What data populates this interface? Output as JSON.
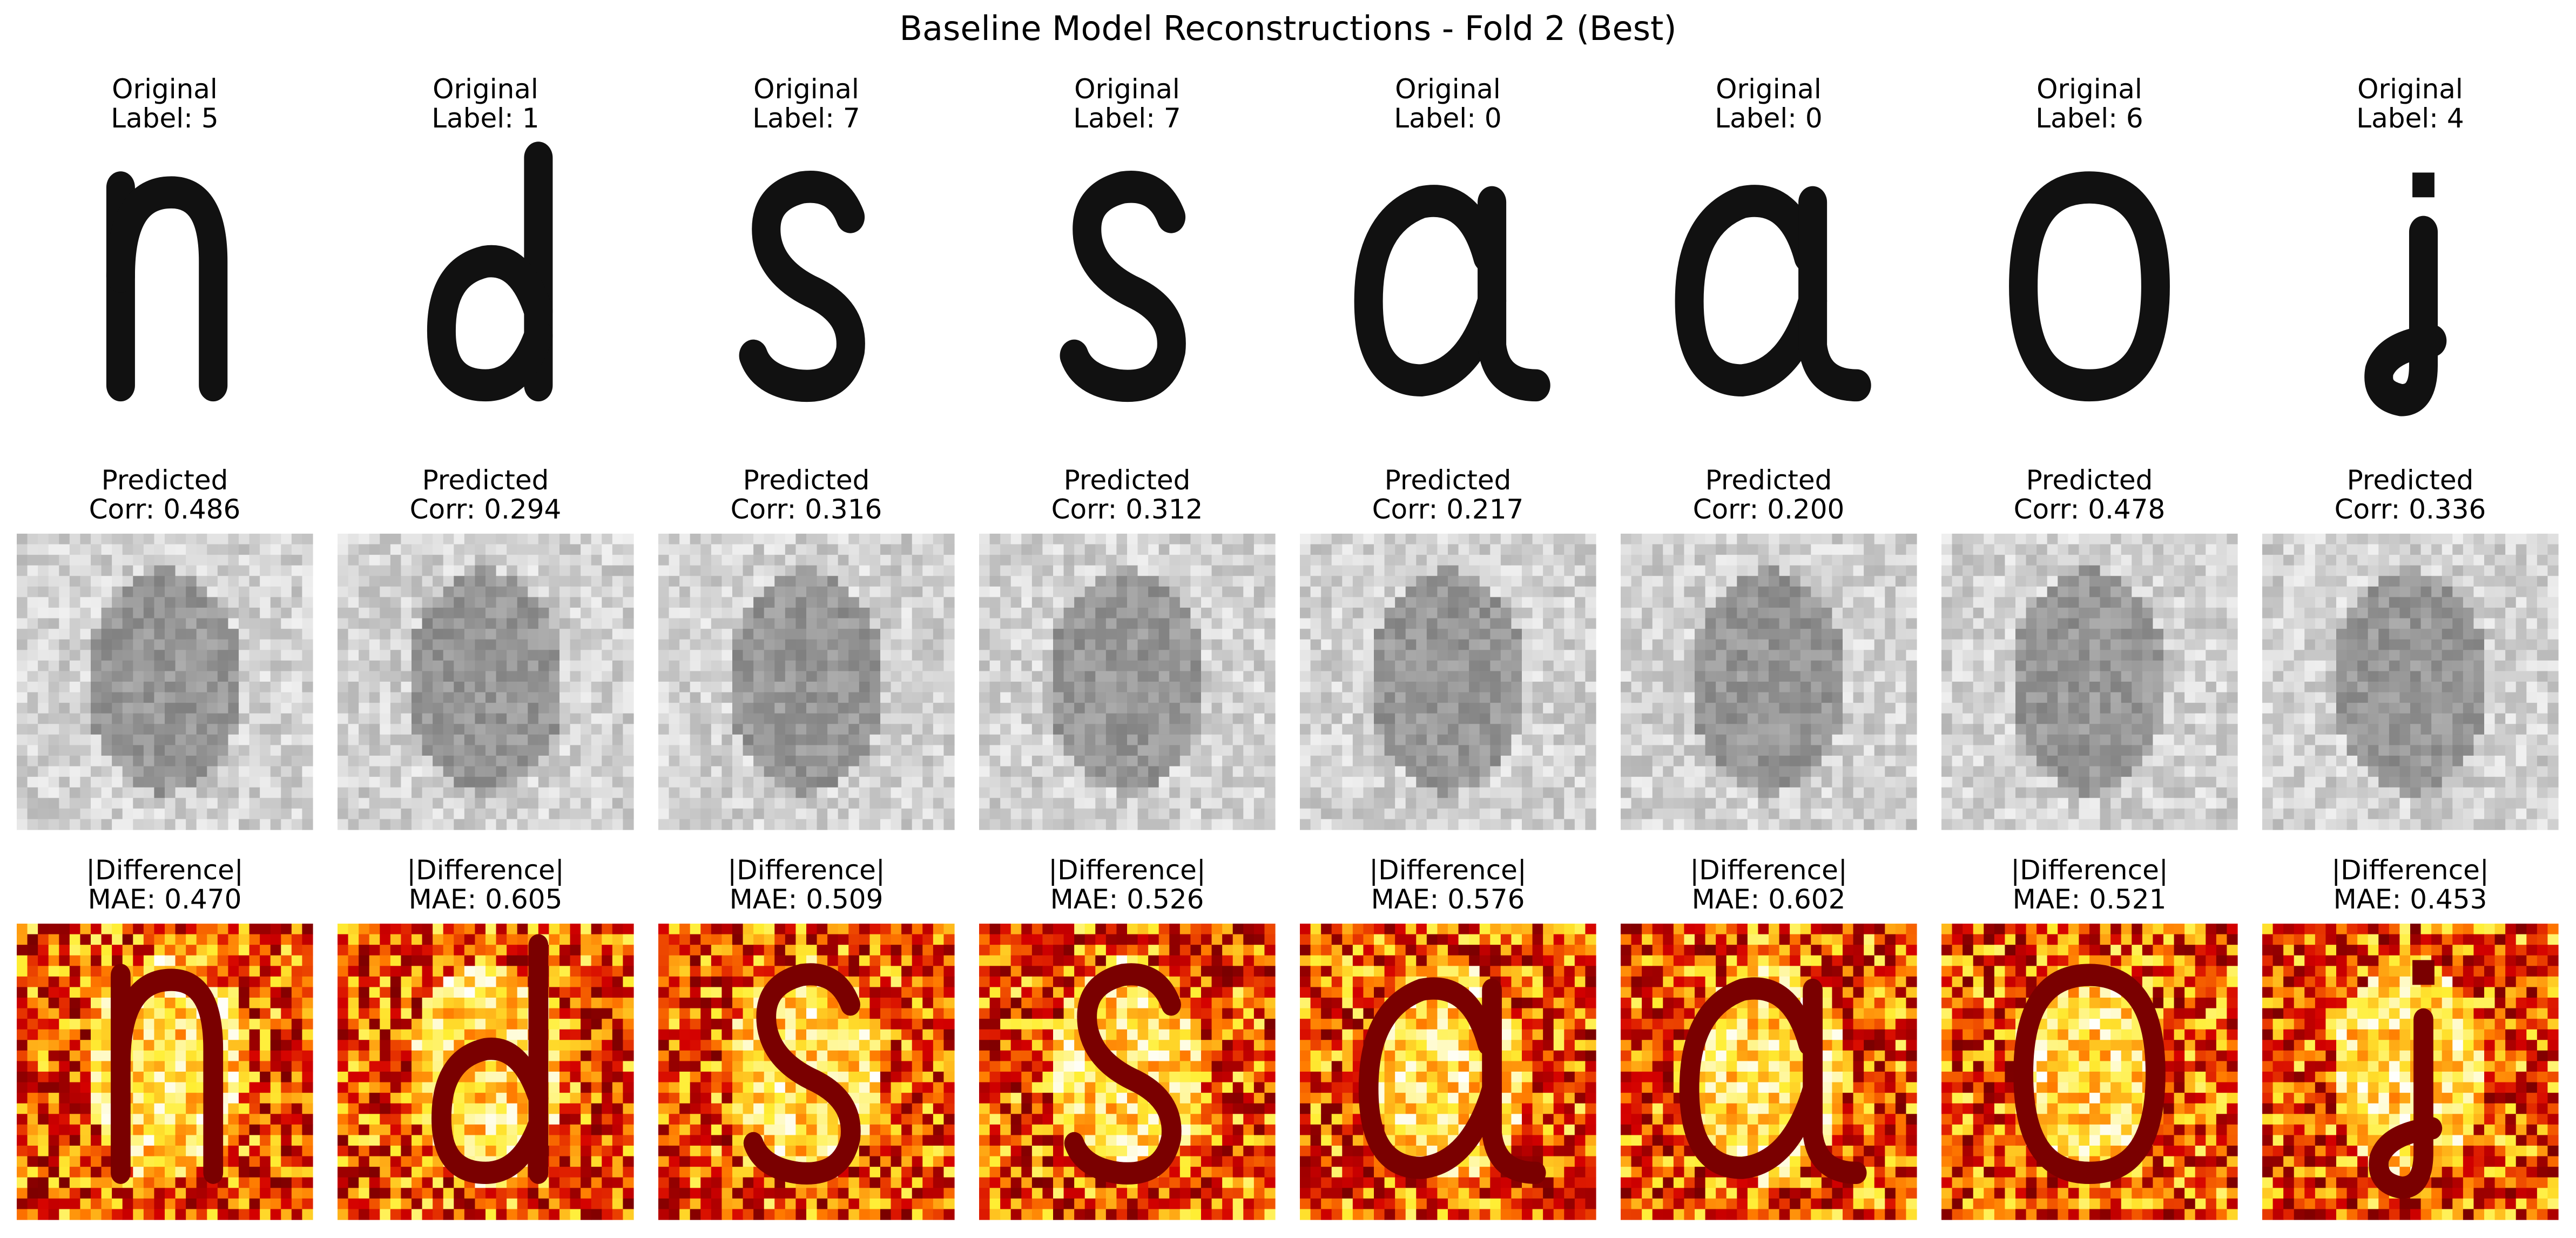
{
  "figure": {
    "title": "Baseline Model Reconstructions - Fold 2 (Best)",
    "rows": [
      {
        "kind": "original",
        "heading": "Original",
        "values": [
          "Label: 5",
          "Label: 1",
          "Label: 7",
          "Label: 7",
          "Label: 0",
          "Label: 0",
          "Label: 6",
          "Label: 4"
        ]
      },
      {
        "kind": "predicted",
        "heading": "Predicted",
        "values": [
          "Corr: 0.486",
          "Corr: 0.294",
          "Corr: 0.316",
          "Corr: 0.312",
          "Corr: 0.217",
          "Corr: 0.200",
          "Corr: 0.478",
          "Corr: 0.336"
        ]
      },
      {
        "kind": "difference",
        "heading": "|Difference|",
        "values": [
          "MAE: 0.470",
          "MAE: 0.605",
          "MAE: 0.509",
          "MAE: 0.526",
          "MAE: 0.576",
          "MAE: 0.602",
          "MAE: 0.521",
          "MAE: 0.453"
        ]
      }
    ],
    "glyph_icons": [
      "letter-n-icon",
      "letter-d-icon",
      "letter-s-icon",
      "letter-s-icon",
      "letter-a-icon",
      "letter-a-icon",
      "letter-o-icon",
      "letter-j-icon"
    ],
    "colors": {
      "ink": "#111111",
      "gray_light": "#e6e6e6",
      "gray_dark": "#5a5a5a",
      "heat_dark": "#7a0000",
      "heat_red": "#d40000",
      "heat_orange": "#ff7a00",
      "heat_yellow": "#ffee33",
      "heat_white": "#ffffff"
    }
  }
}
